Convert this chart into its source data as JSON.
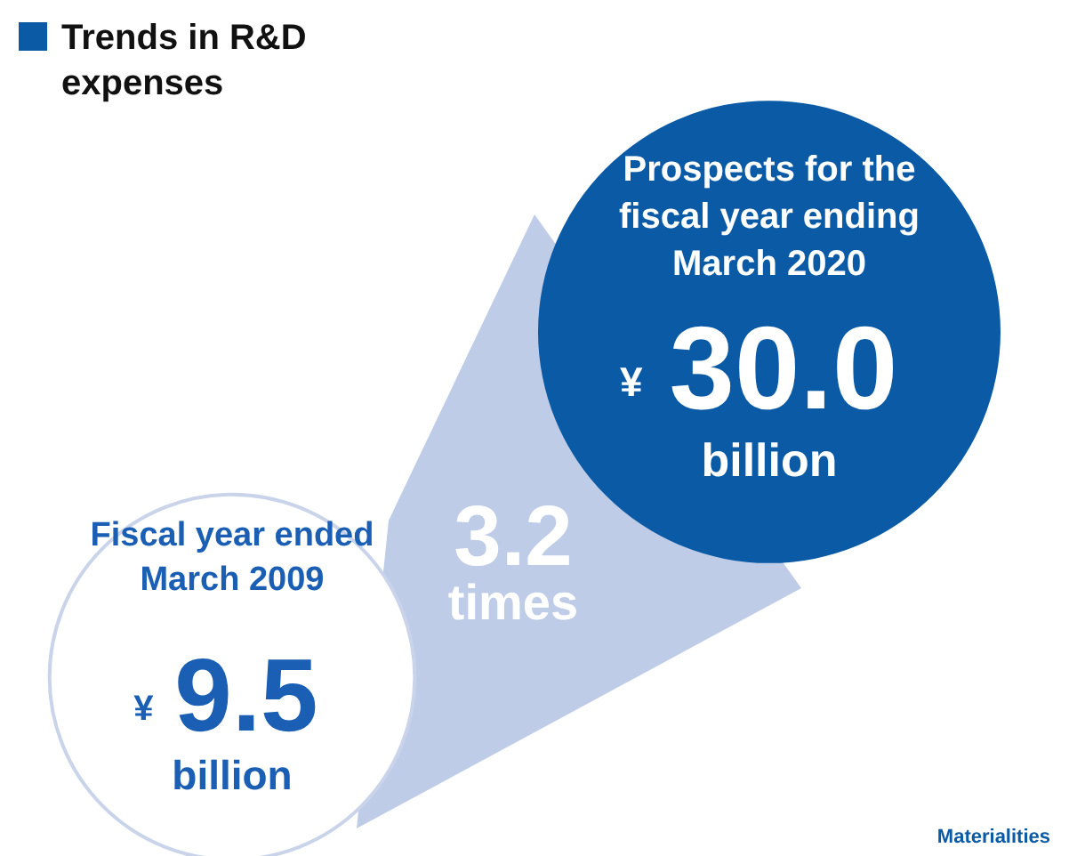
{
  "chart_data": {
    "type": "other",
    "title": "Trends in R&D expenses",
    "categories": [
      "Fiscal year ended March 2009",
      "Prospects for the fiscal year ending March 2020"
    ],
    "values": [
      9.5,
      30.0
    ],
    "value_labels": [
      "9.5",
      "30.0"
    ],
    "colors": [
      "#ffffff",
      "#0b5aa6"
    ],
    "annotations": [
      "¥",
      "billion",
      "¥",
      "billion",
      "3.2 times",
      "Materialities"
    ]
  }
}
